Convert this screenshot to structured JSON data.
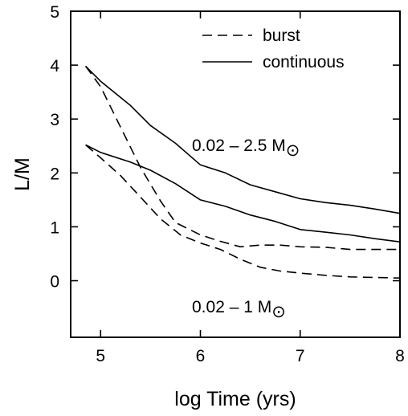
{
  "chart_data": {
    "type": "line",
    "xlabel": "log Time (yrs)",
    "ylabel": "L/M",
    "xlim": [
      4.7,
      8
    ],
    "ylim": [
      -1.05,
      5
    ],
    "xticks": [
      5,
      6,
      7,
      8
    ],
    "yticks": [
      0,
      1,
      2,
      3,
      4,
      5
    ],
    "grid": false,
    "legend": {
      "placement": "top-right",
      "entries": [
        {
          "label": "burst",
          "style": "dashed"
        },
        {
          "label": "continuous",
          "style": "solid"
        }
      ]
    },
    "annotations": [
      {
        "text": "0.02 – 2.5 M",
        "subscript": "⊙",
        "x": 6.95,
        "y": 2.55
      },
      {
        "text": "0.02 – 1 M",
        "subscript": "⊙",
        "x": 6.75,
        "y": -0.45
      }
    ],
    "series": [
      {
        "label": "0.02 – 2.5 M⊙ continuous",
        "style": "solid",
        "points": [
          [
            4.85,
            3.98
          ],
          [
            5.0,
            3.7
          ],
          [
            5.3,
            3.25
          ],
          [
            5.5,
            2.88
          ],
          [
            5.75,
            2.55
          ],
          [
            6.0,
            2.15
          ],
          [
            6.25,
            2.0
          ],
          [
            6.5,
            1.78
          ],
          [
            6.75,
            1.65
          ],
          [
            7.0,
            1.52
          ],
          [
            7.25,
            1.45
          ],
          [
            7.5,
            1.4
          ],
          [
            7.75,
            1.33
          ],
          [
            8.0,
            1.25
          ]
        ]
      },
      {
        "label": "0.02 – 1 M⊙ continuous",
        "style": "solid",
        "points": [
          [
            4.85,
            2.52
          ],
          [
            5.0,
            2.38
          ],
          [
            5.3,
            2.2
          ],
          [
            5.5,
            2.05
          ],
          [
            5.75,
            1.8
          ],
          [
            6.0,
            1.5
          ],
          [
            6.25,
            1.38
          ],
          [
            6.5,
            1.22
          ],
          [
            6.75,
            1.1
          ],
          [
            7.0,
            0.95
          ],
          [
            7.25,
            0.9
          ],
          [
            7.5,
            0.85
          ],
          [
            7.75,
            0.78
          ],
          [
            8.0,
            0.72
          ]
        ]
      },
      {
        "label": "0.02 – 2.5 M⊙ burst",
        "style": "dashed",
        "points": [
          [
            4.85,
            3.98
          ],
          [
            5.0,
            3.6
          ],
          [
            5.2,
            2.85
          ],
          [
            5.4,
            2.1
          ],
          [
            5.6,
            1.48
          ],
          [
            5.75,
            1.08
          ],
          [
            6.0,
            0.85
          ],
          [
            6.2,
            0.73
          ],
          [
            6.4,
            0.63
          ],
          [
            6.6,
            0.66
          ],
          [
            6.8,
            0.66
          ],
          [
            7.0,
            0.63
          ],
          [
            7.25,
            0.62
          ],
          [
            7.5,
            0.58
          ],
          [
            8.0,
            0.58
          ]
        ]
      },
      {
        "label": "0.02 – 1 M⊙ burst",
        "style": "dashed",
        "points": [
          [
            4.85,
            2.52
          ],
          [
            5.0,
            2.28
          ],
          [
            5.2,
            1.95
          ],
          [
            5.4,
            1.55
          ],
          [
            5.6,
            1.15
          ],
          [
            5.8,
            0.85
          ],
          [
            6.0,
            0.7
          ],
          [
            6.2,
            0.58
          ],
          [
            6.4,
            0.4
          ],
          [
            6.6,
            0.25
          ],
          [
            6.8,
            0.18
          ],
          [
            7.0,
            0.14
          ],
          [
            7.25,
            0.1
          ],
          [
            7.5,
            0.07
          ],
          [
            7.75,
            0.06
          ],
          [
            8.0,
            0.05
          ]
        ]
      }
    ]
  }
}
